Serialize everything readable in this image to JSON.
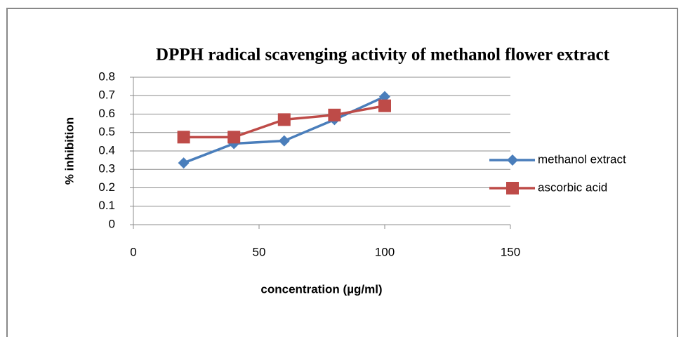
{
  "chart_data": {
    "type": "line",
    "title": "DPPH radical scavenging activity of methanol flower extract",
    "x_label": "concentration (µg/ml)",
    "y_label": "% inhibition",
    "x": [
      20,
      40,
      60,
      80,
      100
    ],
    "series": [
      {
        "name": "methanol extract",
        "color": "#4a7ebb",
        "marker": "diamond",
        "values": [
          0.335,
          0.44,
          0.455,
          0.57,
          0.695
        ]
      },
      {
        "name": "ascorbic acid",
        "color": "#be4b48",
        "marker": "square",
        "values": [
          0.475,
          0.475,
          0.57,
          0.595,
          0.645
        ]
      }
    ],
    "xlim": [
      0,
      150
    ],
    "xticks": [
      0,
      50,
      100,
      150
    ],
    "ylim": [
      0,
      0.8
    ],
    "yticks": [
      0,
      0.1,
      0.2,
      0.3,
      0.4,
      0.5,
      0.6,
      0.7,
      0.8
    ],
    "grid": true,
    "legend": "right"
  }
}
